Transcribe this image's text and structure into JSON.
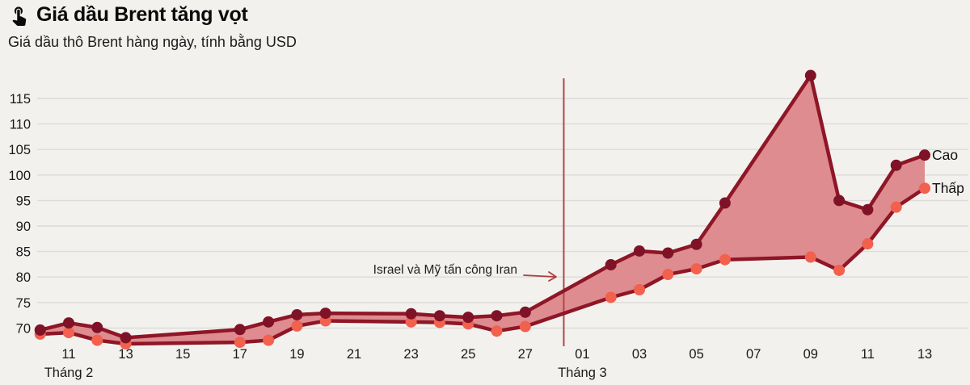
{
  "header": {
    "icon": "tap-gesture-icon",
    "title": "Giá dầu Brent tăng vọt",
    "subtitle": "Giá dầu thô Brent hàng ngày, tính bằng USD"
  },
  "chart_data": {
    "type": "area",
    "unit": "USD",
    "ylim": [
      66.5,
      120.5
    ],
    "yticks": [
      70,
      75,
      80,
      85,
      90,
      95,
      100,
      105,
      110,
      115
    ],
    "legend": {
      "high": "Cao",
      "low": "Thấp"
    },
    "points": [
      {
        "date": "10/02",
        "high": 69.6,
        "low": 68.8
      },
      {
        "date": "11/02",
        "high": 71.0,
        "low": 69.1
      },
      {
        "date": "12/02",
        "high": 70.1,
        "low": 67.6
      },
      {
        "date": "13/02",
        "high": 68.1,
        "low": 66.9
      },
      {
        "date": "17/02",
        "high": 69.7,
        "low": 67.2
      },
      {
        "date": "18/02",
        "high": 71.2,
        "low": 67.6
      },
      {
        "date": "19/02",
        "high": 72.6,
        "low": 70.4
      },
      {
        "date": "20/02",
        "high": 72.9,
        "low": 71.4
      },
      {
        "date": "23/02",
        "high": 72.8,
        "low": 71.2
      },
      {
        "date": "24/02",
        "high": 72.4,
        "low": 71.1
      },
      {
        "date": "25/02",
        "high": 72.1,
        "low": 70.8
      },
      {
        "date": "26/02",
        "high": 72.4,
        "low": 69.4
      },
      {
        "date": "27/02",
        "high": 73.1,
        "low": 70.3
      },
      {
        "date": "02/03",
        "high": 82.4,
        "low": 76.0
      },
      {
        "date": "03/03",
        "high": 85.1,
        "low": 77.5
      },
      {
        "date": "04/03",
        "high": 84.7,
        "low": 80.5
      },
      {
        "date": "05/03",
        "high": 86.4,
        "low": 81.6
      },
      {
        "date": "06/03",
        "high": 94.5,
        "low": 83.4
      },
      {
        "date": "09/03",
        "high": 119.5,
        "low": 83.9
      },
      {
        "date": "10/03",
        "high": 95.0,
        "low": 81.3
      },
      {
        "date": "11/03",
        "high": 93.2,
        "low": 86.5
      },
      {
        "date": "12/03",
        "high": 101.9,
        "low": 93.7
      },
      {
        "date": "13/03",
        "high": 103.9,
        "low": 97.4
      }
    ],
    "x_ticks": [
      {
        "label": "11",
        "date": "11/02"
      },
      {
        "label": "13",
        "date": "13/02"
      },
      {
        "label": "15",
        "date": "15/02"
      },
      {
        "label": "17",
        "date": "17/02"
      },
      {
        "label": "19",
        "date": "19/02"
      },
      {
        "label": "21",
        "date": "21/02"
      },
      {
        "label": "23",
        "date": "23/02"
      },
      {
        "label": "25",
        "date": "25/02"
      },
      {
        "label": "27",
        "date": "27/02"
      },
      {
        "label": "01",
        "date": "01/03"
      },
      {
        "label": "03",
        "date": "03/03"
      },
      {
        "label": "05",
        "date": "05/03"
      },
      {
        "label": "07",
        "date": "07/03"
      },
      {
        "label": "09",
        "date": "09/03"
      },
      {
        "label": "11",
        "date": "11/03"
      },
      {
        "label": "13",
        "date": "13/03"
      }
    ],
    "month_labels": [
      {
        "text": "Tháng 2",
        "date": "11/02"
      },
      {
        "text": "Tháng 3",
        "date": "01/03"
      }
    ],
    "annotation": {
      "text": "Israel và Mỹ tấn công Iran",
      "line_day_offset": 18.35
    },
    "colors": {
      "background": "#f2f1ee",
      "grid": "#dcdbd8",
      "line": "#8e1626",
      "high_dot": "#7f1226",
      "low_dot": "#f2604e",
      "fill": "#de8c8f",
      "event_line": "#b0484d",
      "arrow": "#a8403f",
      "tick_text": "#1a1a1a"
    }
  }
}
